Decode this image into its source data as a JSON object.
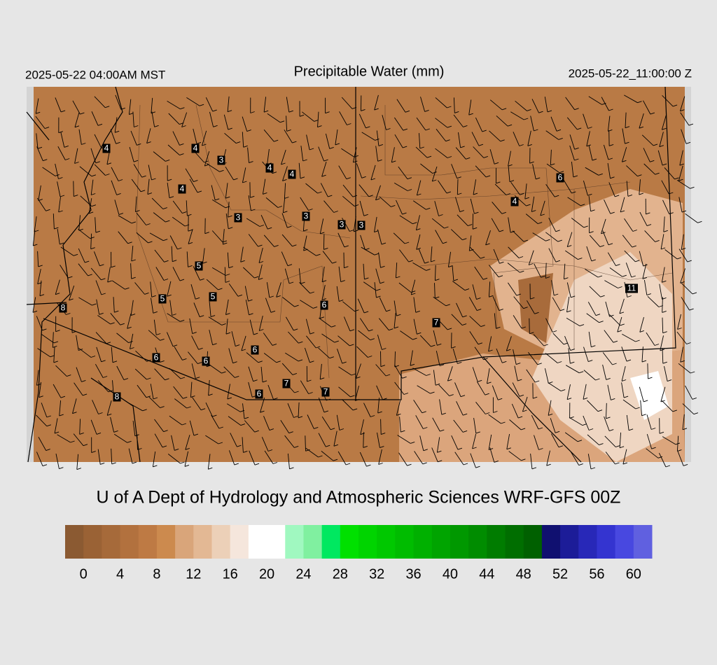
{
  "header": {
    "left": "2025-05-22 04:00AM MST",
    "title": "Precipitable Water (mm)",
    "right": "2025-05-22_11:00:00 Z"
  },
  "map": {
    "stations": [
      "4",
      "4",
      "3",
      "4",
      "4",
      "4",
      "3",
      "3",
      "3",
      "3",
      "6",
      "4",
      "5",
      "5",
      "5",
      "6",
      "8",
      "11",
      "7",
      "6",
      "6",
      "6",
      "7",
      "6",
      "7",
      "8"
    ]
  },
  "footer": "U of A Dept of Hydrology and Atmospheric Sciences WRF-GFS 00Z",
  "colorbar": {
    "ticks": [
      0,
      4,
      8,
      12,
      16,
      20,
      24,
      28,
      32,
      36,
      40,
      44,
      48,
      52,
      56,
      60
    ],
    "colors": [
      "#8b5a32",
      "#9a6235",
      "#a66a3a",
      "#b2713e",
      "#be7a44",
      "#cc8a4e",
      "#d9a57a",
      "#e3b894",
      "#ecd0b8",
      "#f5e6dc",
      "#ffffff",
      "#ffffff",
      "#a0f8c0",
      "#80f0a0",
      "#00e860",
      "#00e000",
      "#00d400",
      "#00c800",
      "#00bc00",
      "#00b000",
      "#00a400",
      "#009800",
      "#008c00",
      "#007c00",
      "#006e00",
      "#006000",
      "#101070",
      "#1c1c98",
      "#2828b8",
      "#3434d0",
      "#4848e0",
      "#6060e0"
    ]
  }
}
